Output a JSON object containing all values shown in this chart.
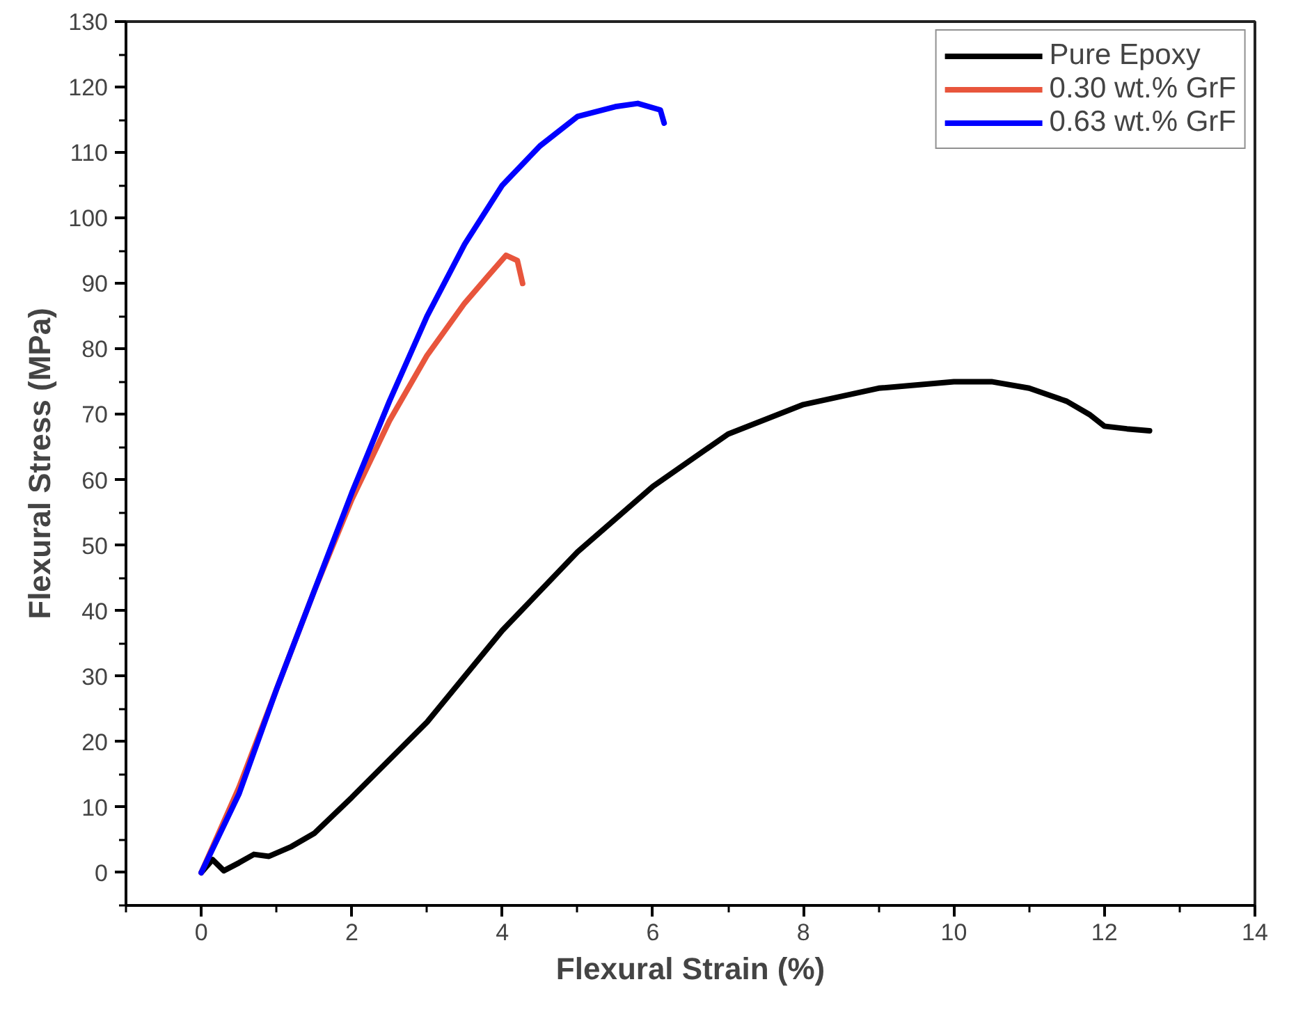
{
  "chart_data": {
    "type": "line",
    "xlabel": "Flexural Strain (%)",
    "ylabel": "Flexural Stress (MPa)",
    "xlim": [
      -1,
      14
    ],
    "ylim": [
      -5,
      130
    ],
    "xticks": [
      0,
      2,
      4,
      6,
      8,
      10,
      12,
      14
    ],
    "yticks": [
      0,
      10,
      20,
      30,
      40,
      50,
      60,
      70,
      80,
      90,
      100,
      110,
      120,
      130
    ],
    "grid": false,
    "legend": "top right",
    "marker": "none",
    "line_style": "solid",
    "series": [
      {
        "name": "Pure Epoxy",
        "color": "#000000",
        "x": [
          0,
          0.15,
          0.3,
          0.5,
          0.7,
          0.9,
          1.2,
          1.5,
          2,
          3,
          4,
          5,
          6,
          7,
          8,
          9,
          10,
          10.5,
          11,
          11.5,
          11.8,
          12,
          12.3,
          12.6
        ],
        "values": [
          0,
          2,
          0.3,
          1.5,
          2.8,
          2.5,
          4,
          6,
          11.5,
          23,
          37,
          49,
          59,
          67,
          71.5,
          74,
          75,
          75,
          74,
          72,
          70,
          68.2,
          67.8,
          67.5
        ]
      },
      {
        "name": "0.30 wt.% GrF",
        "color": "#e8553c",
        "x": [
          0,
          0.5,
          1,
          1.5,
          2,
          2.5,
          3,
          3.5,
          3.8,
          4.05,
          4.2,
          4.25,
          4.27
        ],
        "values": [
          0,
          13,
          28,
          43,
          57,
          69,
          79,
          87,
          91,
          94.3,
          93.5,
          91,
          90
        ]
      },
      {
        "name": "0.63 wt.% GrF",
        "color": "#0000ff",
        "x": [
          0,
          0.5,
          1,
          1.5,
          2,
          2.5,
          3,
          3.5,
          4,
          4.5,
          5,
          5.5,
          5.8,
          6.1,
          6.15
        ],
        "values": [
          0,
          12,
          28,
          43,
          58,
          72,
          85,
          96,
          105,
          111,
          115.5,
          117,
          117.5,
          116.5,
          114.5
        ]
      }
    ]
  }
}
